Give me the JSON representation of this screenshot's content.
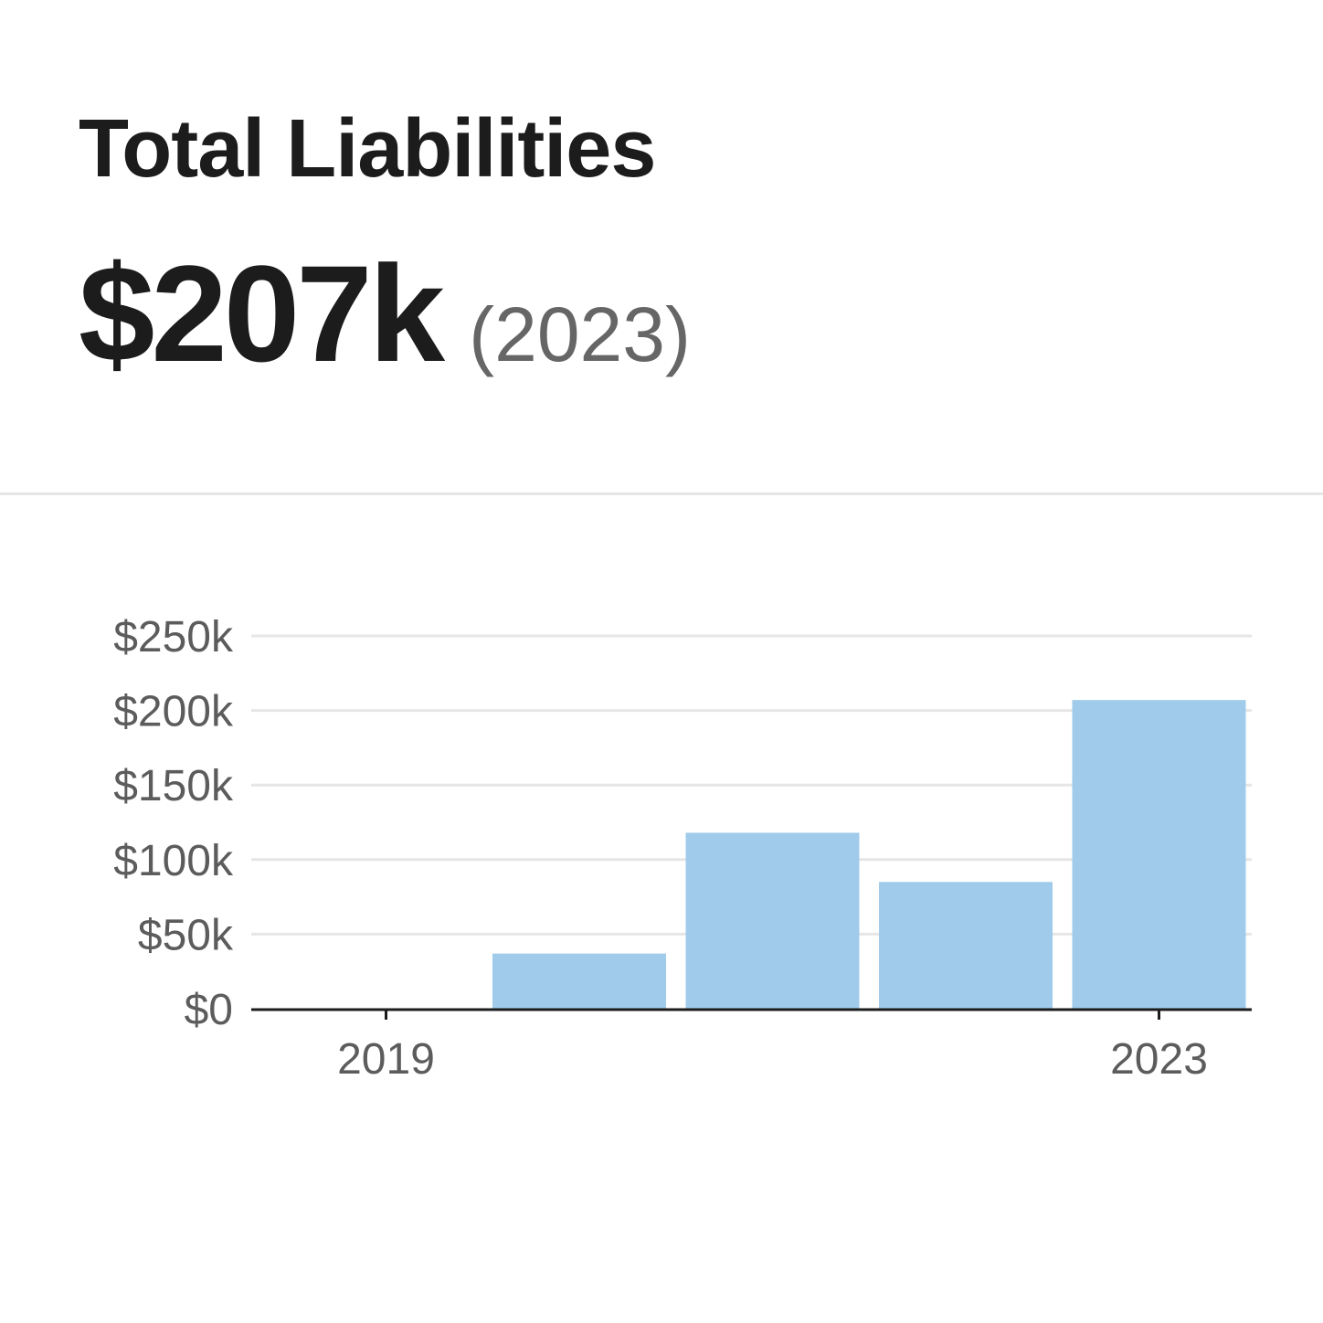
{
  "header": {
    "title": "Total Liabilities",
    "value": "$207k",
    "year_note": "(2023)"
  },
  "colors": {
    "bar": "#a0cbea",
    "grid": "#e6e6e6",
    "axis": "#1c1c1c",
    "text": "#5c5c5c"
  },
  "chart_data": {
    "type": "bar",
    "title": "",
    "xlabel": "",
    "ylabel": "",
    "categories": [
      "2019",
      "2020",
      "2021",
      "2022",
      "2023"
    ],
    "values": [
      0,
      37,
      118,
      85,
      207
    ],
    "value_unit": "thousands USD",
    "ylim": [
      0,
      250
    ],
    "y_ticks": [
      0,
      50,
      100,
      150,
      200,
      250
    ],
    "y_tick_labels": [
      "$0",
      "$50k",
      "$100k",
      "$150k",
      "$200k",
      "$250k"
    ],
    "x_tick_labels": [
      {
        "category": "2019",
        "label": "2019"
      },
      {
        "category": "2023",
        "label": "2023"
      }
    ],
    "grid": true,
    "legend": "none"
  }
}
